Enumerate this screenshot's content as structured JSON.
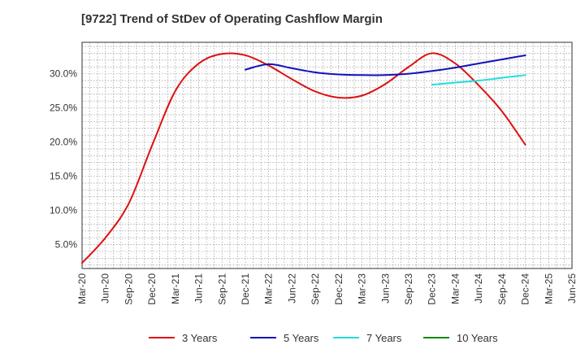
{
  "chart_data": {
    "type": "line",
    "title": "[9722]  Trend of StDev of Operating Cashflow Margin",
    "xlabel": "",
    "ylabel": "",
    "x_ticks": [
      "Mar-20",
      "Jun-20",
      "Sep-20",
      "Dec-20",
      "Mar-21",
      "Jun-21",
      "Sep-21",
      "Dec-21",
      "Mar-22",
      "Jun-22",
      "Sep-22",
      "Dec-22",
      "Mar-23",
      "Jun-23",
      "Sep-23",
      "Dec-23",
      "Mar-24",
      "Jun-24",
      "Sep-24",
      "Dec-24",
      "Mar-25",
      "Jun-25"
    ],
    "y_ticks": [
      5.0,
      10.0,
      15.0,
      20.0,
      25.0,
      30.0
    ],
    "y_tick_labels": [
      "5.0%",
      "10.0%",
      "15.0%",
      "20.0%",
      "25.0%",
      "30.0%"
    ],
    "ylim": [
      1.5,
      34.6
    ],
    "grid": true,
    "legend_position": "bottom",
    "series": [
      {
        "name": "3 Years",
        "color": "#dd1111",
        "points": [
          [
            "Mar-20",
            2.3
          ],
          [
            "Jun-20",
            6.0
          ],
          [
            "Sep-20",
            11.0
          ],
          [
            "Dec-20",
            19.5
          ],
          [
            "Mar-21",
            27.5
          ],
          [
            "Jun-21",
            31.5
          ],
          [
            "Sep-21",
            32.9
          ],
          [
            "Dec-21",
            32.7
          ],
          [
            "Mar-22",
            31.2
          ],
          [
            "Jun-22",
            29.2
          ],
          [
            "Sep-22",
            27.4
          ],
          [
            "Dec-22",
            26.5
          ],
          [
            "Mar-23",
            26.8
          ],
          [
            "Jun-23",
            28.5
          ],
          [
            "Sep-23",
            31.0
          ],
          [
            "Dec-23",
            33.0
          ],
          [
            "Mar-24",
            31.5
          ],
          [
            "Jun-24",
            28.3
          ],
          [
            "Sep-24",
            24.5
          ],
          [
            "Dec-24",
            19.6
          ]
        ]
      },
      {
        "name": "5 Years",
        "color": "#1111bb",
        "points": [
          [
            "Dec-21",
            30.6
          ],
          [
            "Mar-22",
            31.4
          ],
          [
            "Jun-22",
            30.8
          ],
          [
            "Sep-22",
            30.2
          ],
          [
            "Dec-22",
            29.9
          ],
          [
            "Mar-23",
            29.8
          ],
          [
            "Jun-23",
            29.8
          ],
          [
            "Sep-23",
            30.0
          ],
          [
            "Dec-23",
            30.4
          ],
          [
            "Mar-24",
            30.9
          ],
          [
            "Jun-24",
            31.5
          ],
          [
            "Sep-24",
            32.1
          ],
          [
            "Dec-24",
            32.7
          ]
        ]
      },
      {
        "name": "7 Years",
        "color": "#22dddd",
        "points": [
          [
            "Dec-23",
            28.4
          ],
          [
            "Mar-24",
            28.7
          ],
          [
            "Jun-24",
            29.0
          ],
          [
            "Sep-24",
            29.4
          ],
          [
            "Dec-24",
            29.8
          ]
        ]
      },
      {
        "name": "10 Years",
        "color": "#118811",
        "points": []
      }
    ]
  }
}
